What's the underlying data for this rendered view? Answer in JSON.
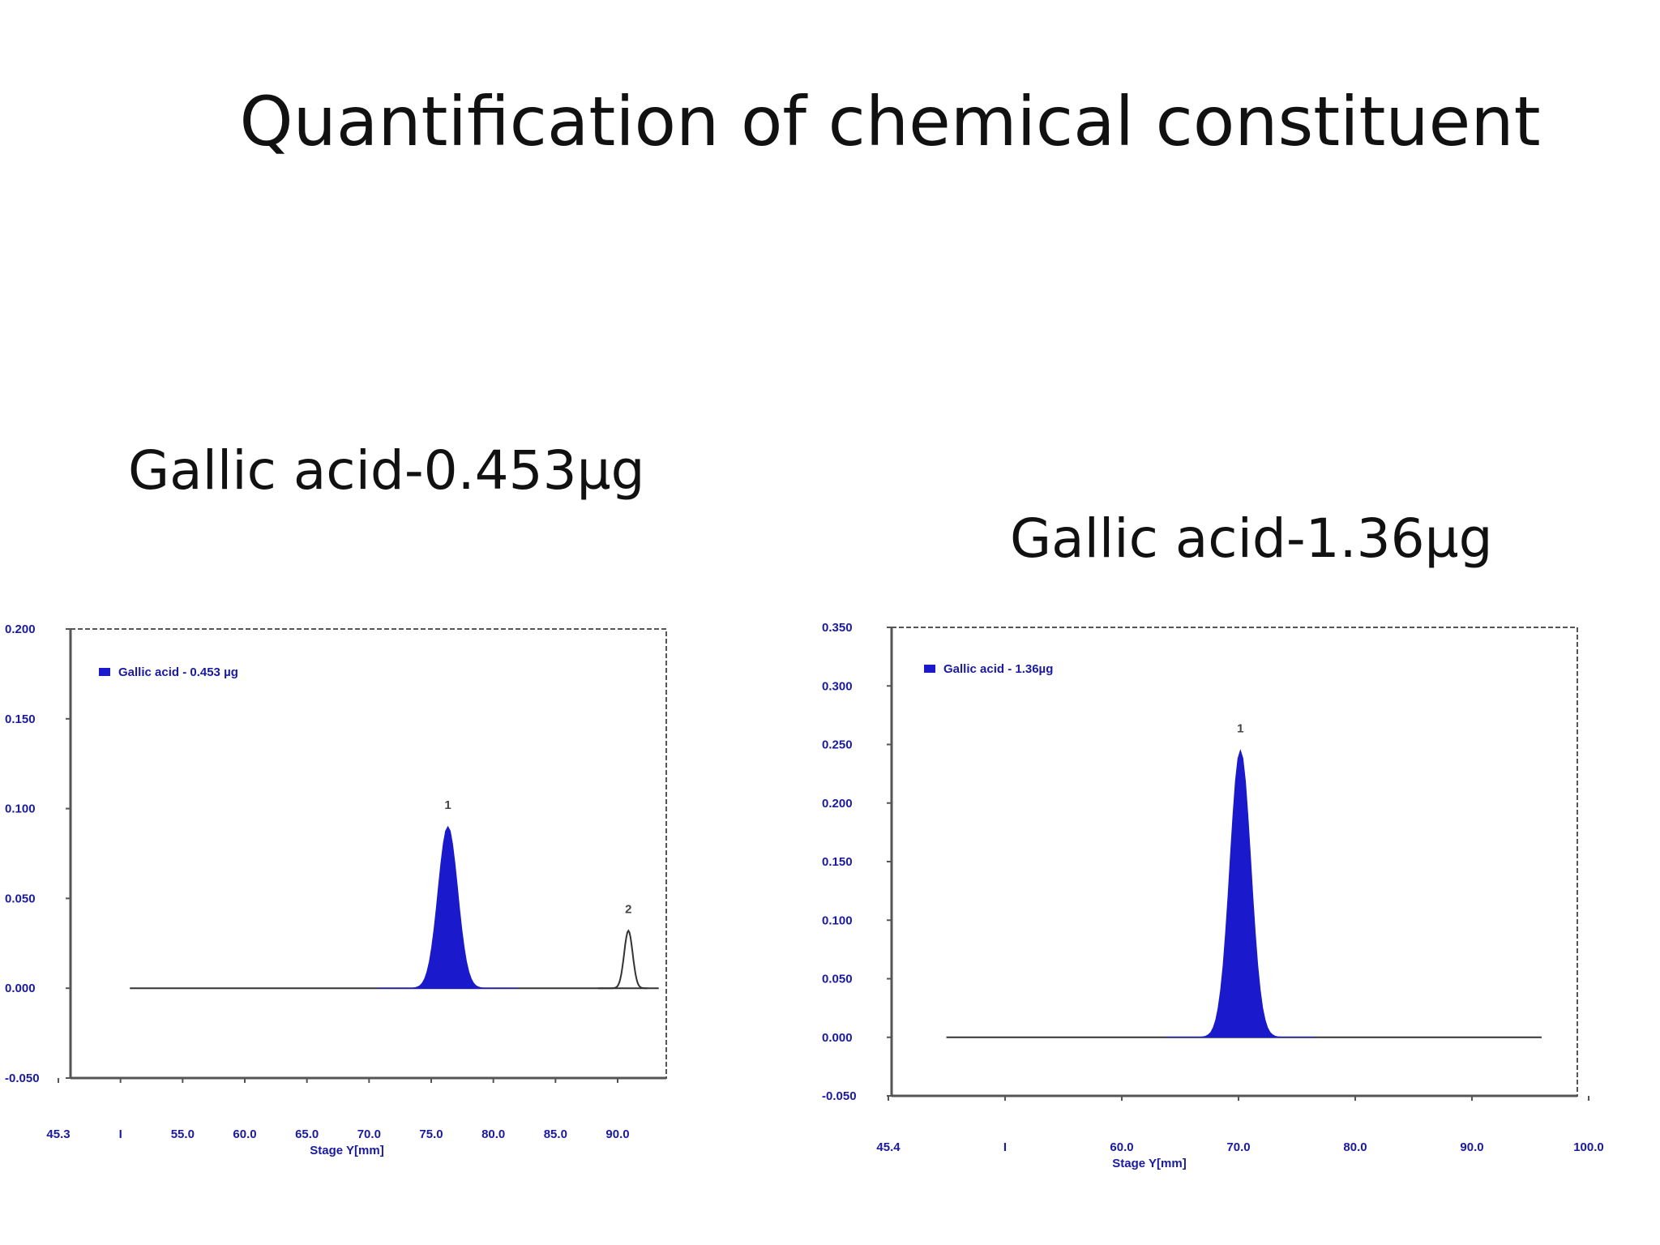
{
  "slide": {
    "title": "Quantification of chemical constituent"
  },
  "captions": {
    "left": "Gallic acid-0.453µg",
    "right": "Gallic acid-1.36µg"
  },
  "colors": {
    "peak_fill": "#1a1acc",
    "tick_text": "#1a1aa0",
    "axis": "#555555",
    "baseline": "#333333"
  },
  "chart_data": [
    {
      "type": "area",
      "legend": "Gallic acid - 0.453 µg",
      "xlabel": "Stage Y[mm]",
      "ylabel": "",
      "xlim": [
        45.3,
        92.5
      ],
      "ylim": [
        -0.05,
        0.2
      ],
      "yticks": [
        "0.200",
        "0.150",
        "0.100",
        "0.050",
        "0.000",
        "-0.050"
      ],
      "xticks": [
        "45.3",
        "I",
        "55.0",
        "60.0",
        "65.0",
        "70.0",
        "75.0",
        "80.0",
        "85.0",
        "90.0"
      ],
      "baseline": [
        50.0,
        91.0
      ],
      "peaks": [
        {
          "label": "1",
          "center": 75.2,
          "height": 0.09,
          "width": 2.3,
          "filled": true
        },
        {
          "label": "2",
          "center": 89.5,
          "height": 0.032,
          "width": 1.0,
          "filled": false
        }
      ]
    },
    {
      "type": "area",
      "legend": "Gallic acid - 1.36µg",
      "xlabel": "Stage Y[mm]",
      "ylabel": "",
      "xlim": [
        45.4,
        103.0
      ],
      "ylim": [
        -0.05,
        0.35
      ],
      "yticks": [
        "0.350",
        "0.300",
        "0.250",
        "0.200",
        "0.150",
        "0.100",
        "0.050",
        "0.000",
        "-0.050"
      ],
      "xticks": [
        "45.4",
        "I",
        "60.0",
        "70.0",
        "80.0",
        "90.0",
        "100.0"
      ],
      "baseline": [
        50.0,
        100.0
      ],
      "peaks": [
        {
          "label": "1",
          "center": 74.7,
          "height": 0.245,
          "width": 2.6,
          "filled": true
        }
      ]
    }
  ]
}
